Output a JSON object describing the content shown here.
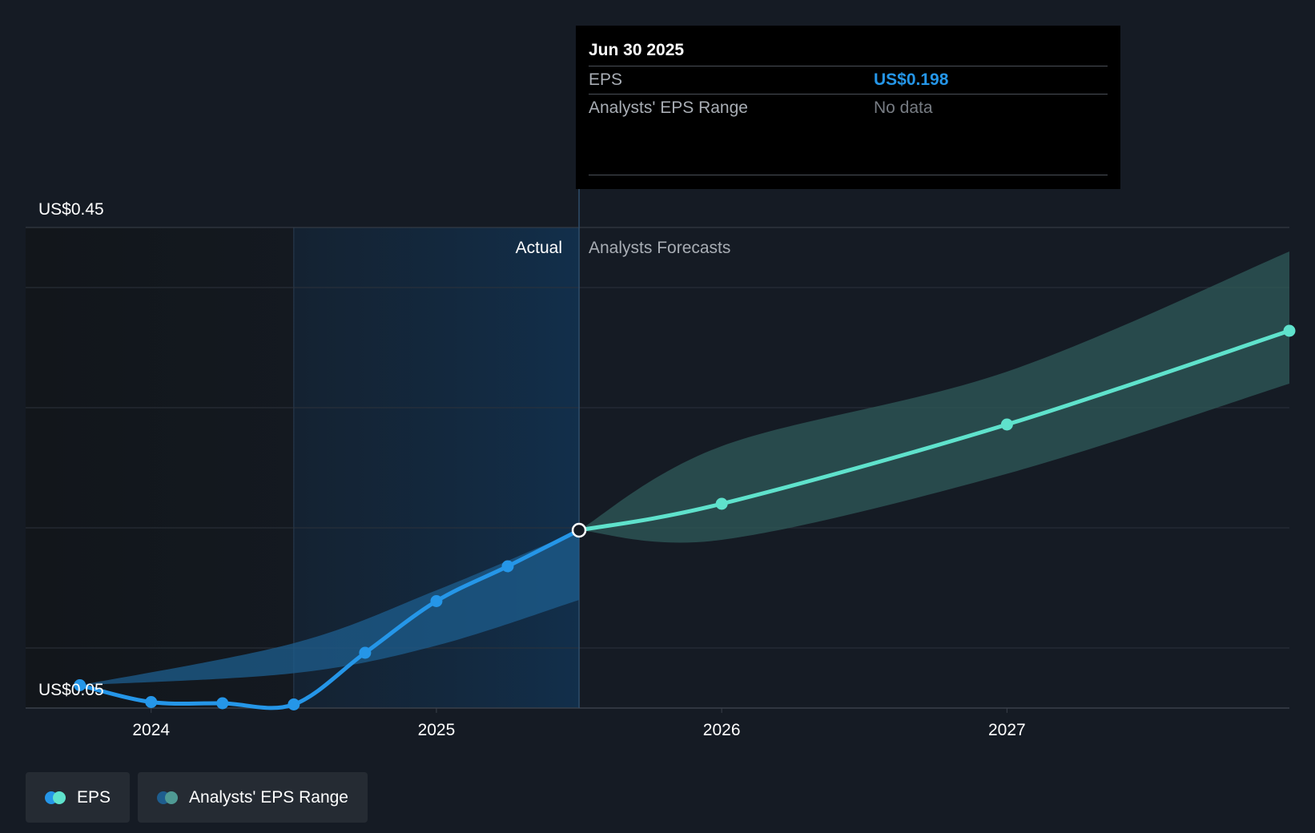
{
  "chart_data": {
    "type": "line",
    "title": "",
    "x_ticks": [
      "2024",
      "2025",
      "2026",
      "2027"
    ],
    "x_tick_values": [
      2024.0,
      2025.0,
      2026.0,
      2027.0
    ],
    "xlim": [
      2023.56,
      2027.99
    ],
    "ylim": [
      0.05,
      0.45
    ],
    "y_labels": [
      "US$0.45",
      "US$0.05"
    ],
    "divider_x": 2025.5,
    "actual_start_x": 2024.5,
    "region_labels": {
      "actual": "Actual",
      "forecast": "Analysts Forecasts"
    },
    "series": [
      {
        "name": "EPS",
        "kind": "actual",
        "color": "#2596e8",
        "points": [
          [
            2023.75,
            0.069
          ],
          [
            2024.0,
            0.055
          ],
          [
            2024.25,
            0.054
          ],
          [
            2024.5,
            0.053
          ],
          [
            2024.75,
            0.096
          ],
          [
            2025.0,
            0.139
          ],
          [
            2025.25,
            0.168
          ],
          [
            2025.5,
            0.198
          ]
        ]
      },
      {
        "name": "EPS",
        "kind": "forecast",
        "color": "#5fe2cc",
        "points": [
          [
            2025.5,
            0.198
          ],
          [
            2026.0,
            0.22
          ],
          [
            2027.0,
            0.286
          ],
          [
            2027.99,
            0.364
          ]
        ]
      }
    ],
    "range_bands": [
      {
        "name": "Analysts' EPS Range",
        "color": "#1e5d8e",
        "upper": [
          [
            2023.75,
            0.069
          ],
          [
            2024.5,
            0.104
          ],
          [
            2025.0,
            0.148
          ],
          [
            2025.5,
            0.198
          ]
        ],
        "lower": [
          [
            2023.75,
            0.069
          ],
          [
            2024.5,
            0.079
          ],
          [
            2025.0,
            0.102
          ],
          [
            2025.5,
            0.14
          ]
        ]
      },
      {
        "name": "Analysts' EPS Range",
        "color": "#2f5b5a",
        "upper": [
          [
            2025.5,
            0.198
          ],
          [
            2026.0,
            0.268
          ],
          [
            2027.0,
            0.33
          ],
          [
            2027.99,
            0.43
          ]
        ],
        "lower": [
          [
            2025.5,
            0.198
          ],
          [
            2026.0,
            0.19
          ],
          [
            2027.0,
            0.245
          ],
          [
            2027.99,
            0.32
          ]
        ]
      }
    ],
    "highlight_point": [
      2025.5,
      0.198
    ]
  },
  "tooltip": {
    "date": "Jun 30 2025",
    "rows": [
      {
        "key": "EPS",
        "value": "US$0.198"
      },
      {
        "key": "Analysts' EPS Range",
        "value": "No data"
      }
    ]
  },
  "legend": [
    {
      "label": "EPS",
      "colors": [
        "#2596e8",
        "#5fe2cc"
      ]
    },
    {
      "label": "Analysts' EPS Range",
      "colors": [
        "#1e5d8e",
        "#4f9a94"
      ]
    }
  ]
}
